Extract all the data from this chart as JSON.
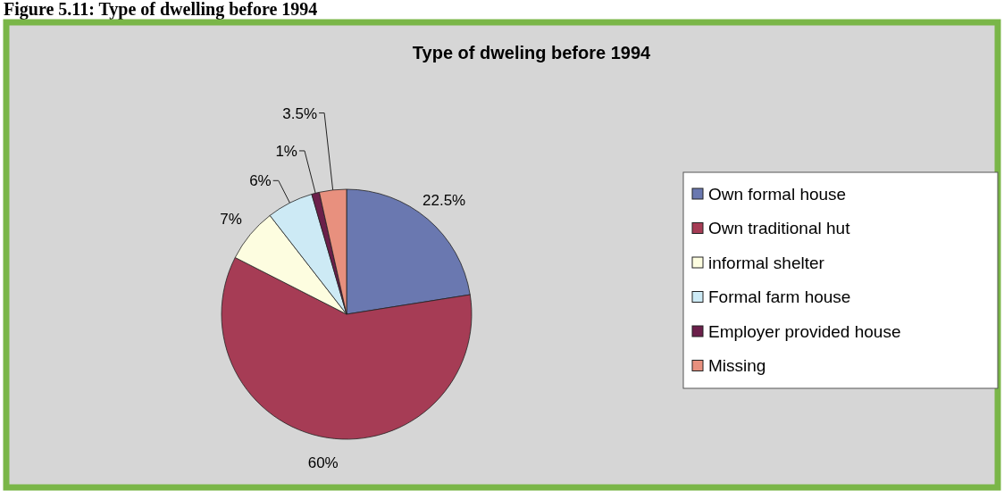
{
  "chart_data": {
    "type": "pie",
    "title": "Type of dweling before 1994",
    "annotations": [
      "Figure 5.11: Type of dwelling before 1994"
    ],
    "categories": [
      "Own formal house",
      "Own traditional hut",
      "informal shelter",
      "Formal farm house",
      "Employer provided house",
      "Missing"
    ],
    "values": [
      22.5,
      60,
      7,
      6,
      1,
      3.5
    ],
    "value_labels": [
      "22.5%",
      "60%",
      "7%",
      "6%",
      "1%",
      "3.5%"
    ],
    "colors": [
      "#6a78b0",
      "#a63c55",
      "#fdfde0",
      "#cdeaf5",
      "#6b1f4a",
      "#e8907e"
    ],
    "legend": "right"
  }
}
